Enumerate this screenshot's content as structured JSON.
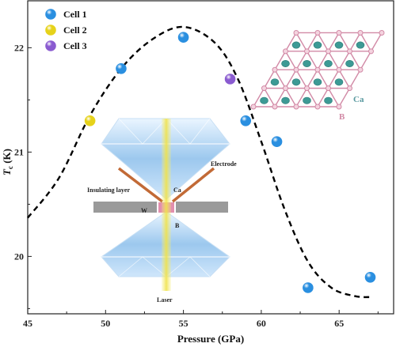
{
  "chart_data": {
    "type": "scatter",
    "xlabel": "Pressure (GPa)",
    "ylabel_main": "T",
    "ylabel_sub": "c",
    "ylabel_unit": " (K)",
    "xlim": [
      45,
      68.5
    ],
    "ylim": [
      19.45,
      22.45
    ],
    "xticks": [
      45,
      50,
      55,
      60,
      65
    ],
    "yticks": [
      20,
      21,
      22
    ],
    "grid": false,
    "legend_position": "top-left",
    "series": [
      {
        "name": "Cell 1",
        "color": "#2a8fe0",
        "points": [
          [
            51,
            21.8
          ],
          [
            55,
            22.1
          ],
          [
            59,
            21.3
          ],
          [
            61,
            21.1
          ],
          [
            63,
            19.7
          ],
          [
            67,
            19.8
          ]
        ]
      },
      {
        "name": "Cell 2",
        "color": "#e6d21a",
        "points": [
          [
            49,
            21.3
          ]
        ]
      },
      {
        "name": "Cell 3",
        "color": "#8a5bd0",
        "points": [
          [
            58,
            21.7
          ]
        ]
      }
    ],
    "fit_curve": [
      [
        45,
        20.37
      ],
      [
        47,
        20.75
      ],
      [
        49,
        21.35
      ],
      [
        51,
        21.8
      ],
      [
        53,
        22.08
      ],
      [
        55,
        22.2
      ],
      [
        57,
        22.05
      ],
      [
        58.5,
        21.7
      ],
      [
        60,
        21.1
      ],
      [
        61.5,
        20.45
      ],
      [
        63,
        19.95
      ],
      [
        64.5,
        19.7
      ],
      [
        66,
        19.62
      ],
      [
        67,
        19.61
      ]
    ]
  },
  "inset_device": {
    "labels": {
      "electrode": "Electrode",
      "insulating": "Insulating layer",
      "ca": "Ca",
      "w": "W",
      "b": "B",
      "laser": "Laser"
    }
  },
  "inset_lattice": {
    "ca_label": "Ca",
    "b_label": "B",
    "ca_color": "#3d9a95",
    "b_color": "#d28aa6"
  }
}
